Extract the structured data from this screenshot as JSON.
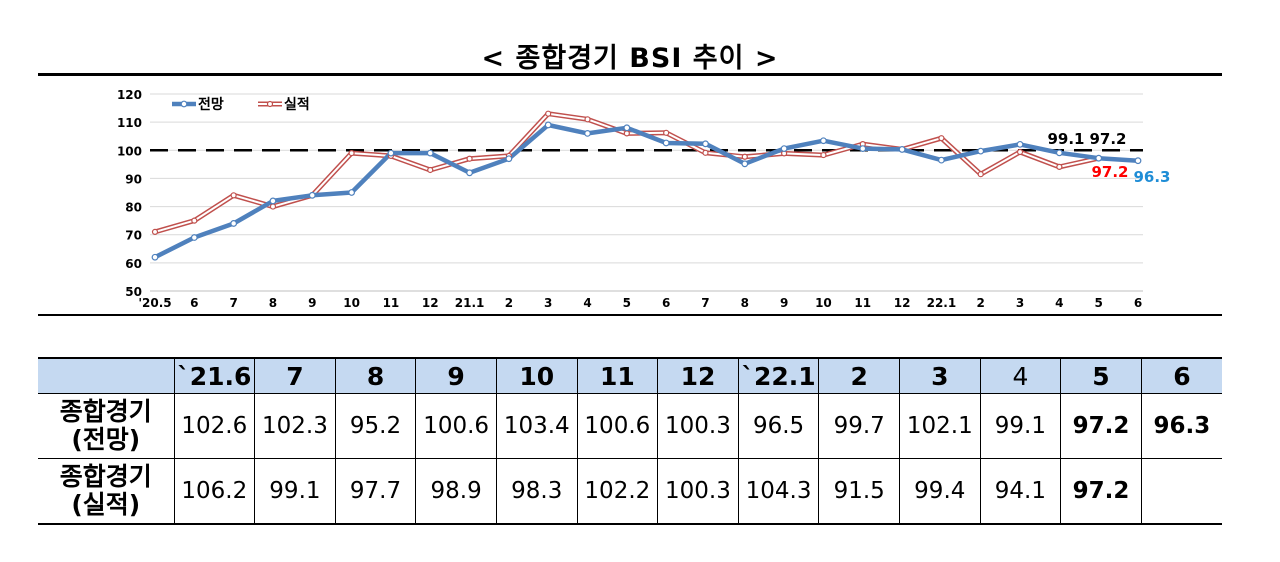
{
  "title": "< 종합경기 BSI 추이 >",
  "chart_data": {
    "type": "line",
    "x": [
      "'20.5",
      "6",
      "7",
      "8",
      "9",
      "10",
      "11",
      "12",
      "21.1",
      "2",
      "3",
      "4",
      "5",
      "6",
      "7",
      "8",
      "9",
      "10",
      "11",
      "12",
      "22.1",
      "2",
      "3",
      "4",
      "5",
      "6"
    ],
    "series": [
      {
        "name": "전망",
        "color": "#4f81bd",
        "values": [
          62,
          69,
          74,
          82,
          84,
          85,
          99,
          99,
          92,
          97,
          109,
          106,
          108,
          102.6,
          102.3,
          95.2,
          100.6,
          103.4,
          100.6,
          100.3,
          96.5,
          99.7,
          102.1,
          99.1,
          97.2,
          96.3
        ]
      },
      {
        "name": "실적",
        "color": "#c0504d",
        "values": [
          71,
          75,
          84,
          80,
          84,
          99,
          98,
          93,
          97,
          98,
          113,
          111,
          106,
          106.2,
          99.1,
          97.7,
          98.9,
          98.3,
          102.2,
          100.3,
          104.3,
          91.5,
          99.4,
          94.1,
          97.2,
          null
        ]
      }
    ],
    "ylim": [
      50,
      120
    ],
    "yticks": [
      50,
      60,
      70,
      80,
      90,
      100,
      110,
      120
    ],
    "reference_line": 100,
    "legend": "top-left",
    "grid": true,
    "annotations": [
      {
        "text": "99.1",
        "color": "#000000"
      },
      {
        "text": "97.2",
        "color": "#000000"
      },
      {
        "text": "97.2",
        "color": "#ff0000"
      },
      {
        "text": "96.3",
        "color": "#1f8dd6"
      }
    ]
  },
  "table": {
    "columns": [
      "`21.6",
      "7",
      "8",
      "9",
      "10",
      "11",
      "12",
      "`22.1",
      "2",
      "3",
      "4",
      "5",
      "6"
    ],
    "rows": [
      {
        "label_line1": "종합경기",
        "label_line2": "(전망)",
        "values": [
          "102.6",
          "102.3",
          "95.2",
          "100.6",
          "103.4",
          "100.6",
          "100.3",
          "96.5",
          "99.7",
          "102.1",
          "99.1",
          "97.2",
          "96.3"
        ]
      },
      {
        "label_line1": "종합경기",
        "label_line2": "(실적)",
        "values": [
          "106.2",
          "99.1",
          "97.7",
          "98.9",
          "98.3",
          "102.2",
          "100.3",
          "104.3",
          "91.5",
          "99.4",
          "94.1",
          "97.2",
          ""
        ]
      }
    ]
  }
}
